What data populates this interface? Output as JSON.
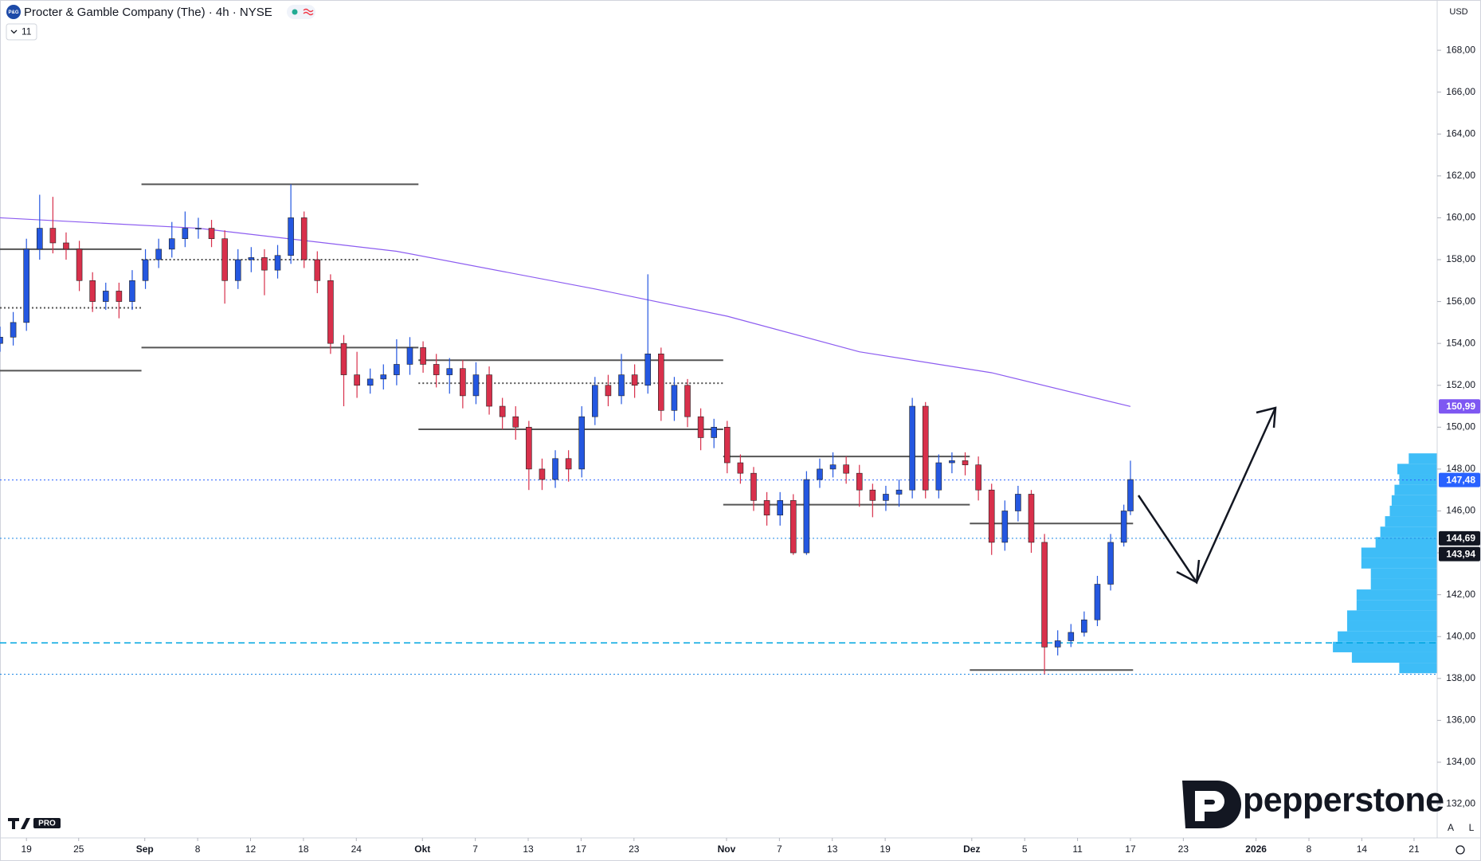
{
  "header": {
    "logo": "P&G",
    "title": "Procter & Gamble Company (The) · 4h · NYSE",
    "interval_badge": "11",
    "currency": "USD",
    "auto_button": "A",
    "log_button": "L",
    "tv_badge": "PRO"
  },
  "branding": {
    "name": "pepperstone"
  },
  "chart_data": {
    "type": "candlestick",
    "up_color": "#2457e0",
    "down_color": "#d8304b",
    "x": [
      0,
      2,
      4,
      6,
      8,
      10,
      12,
      14,
      16,
      18,
      20,
      22,
      24,
      26,
      28,
      30,
      32,
      34,
      36,
      38,
      40,
      42,
      44,
      46,
      48,
      50,
      52,
      54,
      56,
      58,
      60,
      62,
      64,
      66,
      68,
      70,
      72,
      74,
      76,
      78,
      80,
      82,
      84,
      86,
      88,
      90,
      92,
      94,
      96,
      98,
      100,
      102,
      104,
      106,
      108,
      110,
      112,
      114,
      116,
      118,
      120,
      122,
      124,
      126,
      128,
      130,
      132,
      134,
      136,
      138,
      140,
      142,
      144,
      146,
      148,
      150,
      152,
      154,
      156,
      158,
      160,
      162,
      164,
      166,
      168,
      170,
      171
    ],
    "open": [
      154.0,
      154.3,
      155.0,
      158.5,
      159.5,
      158.8,
      158.5,
      157.0,
      156.0,
      156.5,
      156.0,
      157.0,
      158.0,
      158.5,
      159.0,
      159.5,
      159.5,
      159.0,
      157.0,
      158.0,
      158.1,
      157.5,
      158.2,
      160.0,
      158.0,
      157.0,
      154.0,
      152.5,
      152.0,
      152.3,
      152.5,
      153.0,
      153.8,
      153.0,
      152.5,
      152.8,
      151.5,
      152.5,
      151.0,
      150.5,
      150.0,
      148.0,
      147.5,
      148.5,
      148.0,
      150.5,
      152.0,
      151.5,
      152.5,
      152.0,
      153.5,
      150.8,
      152.0,
      150.5,
      149.5,
      150.0,
      148.3,
      147.8,
      146.5,
      145.8,
      146.5,
      144.0,
      147.5,
      148.0,
      148.2,
      147.8,
      147.0,
      146.5,
      146.8,
      147.0,
      151.0,
      147.0,
      148.3,
      148.4,
      148.2,
      147.0,
      144.5,
      146.0,
      146.8,
      144.5,
      139.5,
      139.8,
      140.2,
      140.8,
      142.5,
      144.5,
      146.0
    ],
    "high": [
      154.8,
      155.5,
      159.0,
      161.1,
      161.0,
      159.3,
      158.9,
      157.4,
      156.9,
      156.9,
      157.5,
      158.5,
      159.0,
      159.8,
      160.3,
      160.0,
      159.9,
      159.4,
      158.5,
      158.6,
      158.5,
      158.7,
      161.6,
      160.3,
      158.4,
      157.3,
      154.4,
      153.6,
      152.8,
      153.0,
      154.2,
      154.3,
      154.1,
      153.5,
      153.3,
      153.2,
      153.1,
      152.9,
      151.4,
      151.0,
      150.3,
      148.5,
      148.9,
      148.9,
      151.0,
      152.4,
      152.5,
      153.5,
      153.0,
      157.3,
      153.8,
      152.4,
      152.3,
      150.9,
      150.4,
      150.3,
      148.7,
      148.1,
      146.9,
      146.9,
      146.8,
      147.9,
      148.5,
      148.8,
      148.6,
      148.2,
      147.3,
      147.2,
      147.5,
      151.4,
      151.2,
      148.7,
      148.8,
      148.8,
      148.6,
      147.3,
      146.5,
      147.2,
      147.0,
      144.9,
      140.3,
      140.6,
      141.2,
      142.9,
      144.9,
      146.3,
      148.4
    ],
    "low": [
      153.6,
      153.9,
      154.6,
      158.0,
      158.3,
      158.0,
      156.5,
      155.5,
      155.6,
      155.2,
      155.6,
      156.6,
      157.6,
      158.1,
      158.6,
      159.0,
      158.6,
      155.9,
      156.6,
      157.4,
      156.3,
      157.1,
      157.8,
      157.6,
      156.4,
      153.5,
      151.0,
      151.4,
      151.6,
      151.8,
      152.0,
      152.5,
      152.6,
      151.9,
      151.6,
      150.9,
      151.1,
      150.6,
      149.9,
      149.4,
      147.0,
      147.0,
      147.1,
      147.4,
      147.6,
      150.1,
      151.0,
      151.1,
      151.4,
      151.6,
      150.3,
      150.3,
      150.0,
      148.9,
      149.0,
      147.8,
      147.3,
      146.0,
      145.3,
      145.3,
      143.9,
      143.9,
      147.1,
      147.6,
      147.3,
      146.2,
      145.7,
      146.0,
      146.2,
      146.6,
      146.6,
      146.6,
      147.8,
      147.7,
      146.5,
      143.9,
      144.1,
      145.5,
      144.0,
      138.2,
      139.1,
      139.5,
      140.0,
      140.5,
      142.2,
      144.3,
      145.8
    ],
    "close": [
      154.3,
      155.0,
      158.5,
      159.5,
      158.8,
      158.5,
      157.0,
      156.0,
      156.5,
      156.0,
      157.0,
      158.0,
      158.5,
      159.0,
      159.5,
      159.5,
      159.0,
      157.0,
      158.0,
      158.1,
      157.5,
      158.2,
      160.0,
      158.0,
      157.0,
      154.0,
      152.5,
      152.0,
      152.3,
      152.5,
      153.0,
      153.8,
      153.0,
      152.5,
      152.8,
      151.5,
      152.5,
      151.0,
      150.5,
      150.0,
      148.0,
      147.5,
      148.5,
      148.0,
      150.5,
      152.0,
      151.5,
      152.5,
      152.0,
      153.5,
      150.8,
      152.0,
      150.5,
      149.5,
      150.0,
      148.3,
      147.8,
      146.5,
      145.8,
      146.5,
      144.0,
      147.5,
      148.0,
      148.2,
      147.8,
      147.0,
      146.5,
      146.8,
      147.0,
      151.0,
      147.0,
      148.3,
      148.4,
      148.2,
      147.0,
      144.5,
      146.0,
      146.8,
      144.5,
      139.5,
      139.8,
      140.2,
      140.8,
      142.5,
      144.5,
      146.0,
      147.5
    ],
    "moving_average": {
      "color": "#8c5cf0",
      "x": [
        0,
        30,
        60,
        90,
        110,
        130,
        150,
        171
      ],
      "values": [
        160.0,
        159.5,
        158.4,
        156.6,
        155.3,
        153.6,
        152.6,
        150.99
      ]
    },
    "levels": [
      {
        "value": 161.6,
        "x": [
          21.4,
          63.3
        ],
        "style": "solid"
      },
      {
        "value": 158.5,
        "x": [
          0,
          21.4
        ],
        "style": "solid"
      },
      {
        "value": 152.7,
        "x": [
          0,
          21.4
        ],
        "style": "solid"
      },
      {
        "value": 155.7,
        "x": [
          0,
          21.4
        ],
        "style": "dotted"
      },
      {
        "value": 153.8,
        "x": [
          21.4,
          63.3
        ],
        "style": "solid"
      },
      {
        "value": 158.0,
        "x": [
          21.4,
          63.3
        ],
        "style": "dotted"
      },
      {
        "value": 153.2,
        "x": [
          63.3,
          109.4
        ],
        "style": "solid"
      },
      {
        "value": 149.9,
        "x": [
          63.3,
          109.4
        ],
        "style": "solid"
      },
      {
        "value": 152.1,
        "x": [
          63.3,
          109.4
        ],
        "style": "dotted"
      },
      {
        "value": 148.6,
        "x": [
          109.4,
          146.7
        ],
        "style": "solid"
      },
      {
        "value": 146.3,
        "x": [
          109.4,
          146.7
        ],
        "style": "solid"
      },
      {
        "value": 145.4,
        "x": [
          146.7,
          171.4
        ],
        "style": "solid"
      },
      {
        "value": 138.4,
        "x": [
          146.7,
          171.4
        ],
        "style": "solid"
      }
    ],
    "hlines": [
      {
        "value": 147.48,
        "style": "dotted",
        "color": "#2962ff"
      },
      {
        "value": 144.69,
        "style": "dotted",
        "color": "#1e88e5"
      },
      {
        "value": 139.7,
        "style": "dashed",
        "color": "#00a6e0"
      },
      {
        "value": 138.2,
        "style": "dotted",
        "color": "#1e88e5"
      }
    ],
    "price_labels": [
      {
        "value": 150.99,
        "label": "150,99",
        "color": "#7e57f2"
      },
      {
        "value": 147.48,
        "label": "147,48",
        "color": "#2962ff"
      },
      {
        "value": 144.69,
        "label": "144,69",
        "color": "#131722"
      },
      {
        "value": 143.94,
        "label": "143,94",
        "color": "#131722"
      }
    ],
    "volume_profile": {
      "color": "#29b6f6",
      "prices": [
        138.5,
        139,
        139.5,
        140,
        140.5,
        141,
        141.5,
        142,
        142.5,
        143,
        143.5,
        144,
        144.5,
        145,
        145.5,
        146,
        146.5,
        147,
        147.5,
        148,
        148.5
      ],
      "volumes": [
        40,
        90,
        110,
        105,
        95,
        95,
        85,
        85,
        70,
        70,
        80,
        80,
        65,
        60,
        55,
        50,
        48,
        45,
        40,
        42,
        30
      ]
    },
    "xlim": [
      0,
      217.4
    ],
    "ylim": [
      130.5,
      170.4
    ],
    "xticks": [
      {
        "value": 4,
        "label": "19"
      },
      {
        "value": 11.9,
        "label": "25"
      },
      {
        "value": 21.9,
        "label": "Sep"
      },
      {
        "value": 29.9,
        "label": "8"
      },
      {
        "value": 37.9,
        "label": "12"
      },
      {
        "value": 45.9,
        "label": "18"
      },
      {
        "value": 53.9,
        "label": "24"
      },
      {
        "value": 63.9,
        "label": "Okt"
      },
      {
        "value": 71.9,
        "label": "7"
      },
      {
        "value": 79.9,
        "label": "13"
      },
      {
        "value": 87.9,
        "label": "17"
      },
      {
        "value": 95.9,
        "label": "23"
      },
      {
        "value": 109.9,
        "label": "Nov"
      },
      {
        "value": 117.9,
        "label": "7"
      },
      {
        "value": 125.9,
        "label": "13"
      },
      {
        "value": 133.9,
        "label": "19"
      },
      {
        "value": 147,
        "label": "Dez"
      },
      {
        "value": 155,
        "label": "5"
      },
      {
        "value": 163,
        "label": "11"
      },
      {
        "value": 171,
        "label": "17"
      },
      {
        "value": 179,
        "label": "23"
      },
      {
        "value": 190,
        "label": "2026"
      },
      {
        "value": 198,
        "label": "8"
      },
      {
        "value": 206,
        "label": "14"
      },
      {
        "value": 213.9,
        "label": "21"
      }
    ],
    "yticks": [
      {
        "value": 132,
        "label": "132,00"
      },
      {
        "value": 134,
        "label": "134,00"
      },
      {
        "value": 136,
        "label": "136,00"
      },
      {
        "value": 138,
        "label": "138,00"
      },
      {
        "value": 140,
        "label": "140,00"
      },
      {
        "value": 142,
        "label": "142,00"
      },
      {
        "value": 144,
        "label": "144,00"
      },
      {
        "value": 146,
        "label": "146,00"
      },
      {
        "value": 148,
        "label": "148,00"
      },
      {
        "value": 150,
        "label": "150,00"
      },
      {
        "value": 152,
        "label": "152,00"
      },
      {
        "value": 154,
        "label": "154,00"
      },
      {
        "value": 156,
        "label": "156,00"
      },
      {
        "value": 158,
        "label": "158,00"
      },
      {
        "value": 160,
        "label": "160,00"
      },
      {
        "value": 162,
        "label": "162,00"
      },
      {
        "value": 164,
        "label": "164,00"
      },
      {
        "value": 166,
        "label": "166,00"
      },
      {
        "value": 168,
        "label": "168,00"
      }
    ]
  }
}
